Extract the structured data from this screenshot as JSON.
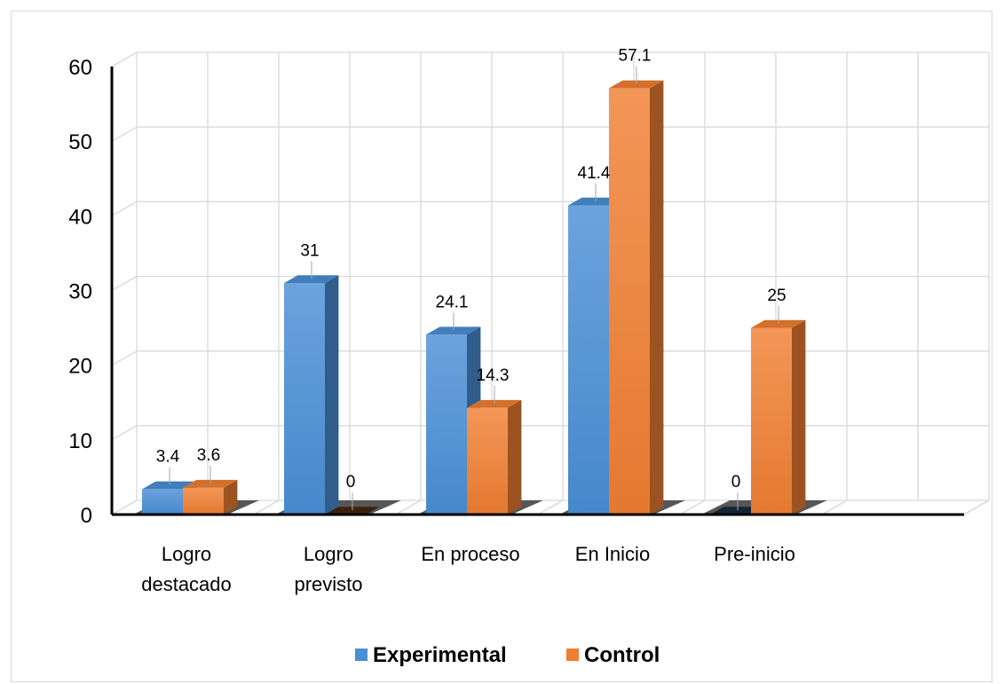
{
  "chart_data": {
    "type": "bar",
    "categories": [
      [
        "Logro",
        "destacado"
      ],
      [
        "Logro",
        "previsto"
      ],
      [
        "En proceso"
      ],
      [
        "En Inicio"
      ],
      [
        "Pre-inicio"
      ]
    ],
    "series": [
      {
        "name": "Experimental",
        "values": [
          3.4,
          31,
          24.1,
          41.4,
          0
        ],
        "color": "#4a8fd6"
      },
      {
        "name": "Control",
        "values": [
          3.6,
          0,
          14.3,
          57.1,
          25
        ],
        "color": "#f07f32"
      }
    ],
    "ylim": [
      0,
      60
    ],
    "yticks": [
      0,
      10,
      20,
      30,
      40,
      50,
      60
    ],
    "xlabel": "",
    "ylabel": "",
    "grid": true,
    "legend_position": "bottom",
    "style": "3d-column"
  }
}
